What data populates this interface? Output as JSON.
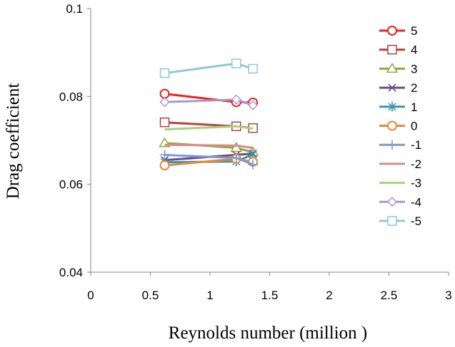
{
  "chart_data": {
    "type": "line",
    "title": "",
    "xlabel": "Reynolds number (million )",
    "ylabel": "Drag coefficient",
    "xlim": [
      0,
      3
    ],
    "ylim": [
      0.04,
      0.1
    ],
    "xticks": [
      "0",
      "0.5",
      "1",
      "1.5",
      "2",
      "2.5",
      "3"
    ],
    "yticks": [
      "0.04",
      "0.06",
      "0.08",
      "0.1"
    ],
    "grid": false,
    "legend_position": "right",
    "series": [
      {
        "name": "5",
        "color": "#e8231f",
        "marker": "circle",
        "x": [
          0.62,
          1.22,
          1.36
        ],
        "y": [
          0.0806,
          0.0787,
          0.0786
        ]
      },
      {
        "name": "4",
        "color": "#b5443c",
        "marker": "square",
        "x": [
          0.62,
          1.22,
          1.36
        ],
        "y": [
          0.0741,
          0.0732,
          0.0728
        ]
      },
      {
        "name": "3",
        "color": "#8faa3e",
        "marker": "triangle",
        "x": [
          0.62,
          1.22,
          1.36
        ],
        "y": [
          0.0694,
          0.0683,
          0.0673
        ]
      },
      {
        "name": "2",
        "color": "#6b4c8a",
        "marker": "x",
        "x": [
          0.62,
          1.22,
          1.36
        ],
        "y": [
          0.0655,
          0.0667,
          0.067
        ]
      },
      {
        "name": "1",
        "color": "#3d95a8",
        "marker": "star",
        "x": [
          0.62,
          1.22,
          1.36
        ],
        "y": [
          0.065,
          0.0652,
          0.0668
        ]
      },
      {
        "name": "0",
        "color": "#e88a33",
        "marker": "circle",
        "x": [
          0.62,
          1.22,
          1.36
        ],
        "y": [
          0.0643,
          0.0658,
          0.0651
        ]
      },
      {
        "name": "-1",
        "color": "#7a9bd6",
        "marker": "plus",
        "x": [
          0.62,
          1.22,
          1.36
        ],
        "y": [
          0.0667,
          0.066,
          0.0645
        ]
      },
      {
        "name": "-2",
        "color": "#d98a88",
        "marker": "none",
        "x": [
          0.62,
          1.22,
          1.36
        ],
        "y": [
          0.069,
          0.0688,
          0.0683
        ]
      },
      {
        "name": "-3",
        "color": "#a9cf86",
        "marker": "none",
        "x": [
          0.62,
          1.22,
          1.36
        ],
        "y": [
          0.0725,
          0.0732,
          0.0727
        ]
      },
      {
        "name": "-4",
        "color": "#a898c8",
        "marker": "diamond",
        "x": [
          0.62,
          1.22,
          1.36
        ],
        "y": [
          0.0787,
          0.0793,
          0.078
        ]
      },
      {
        "name": "-5",
        "color": "#8ec8d8",
        "marker": "square",
        "x": [
          0.62,
          1.22,
          1.36
        ],
        "y": [
          0.0853,
          0.0875,
          0.0863
        ]
      }
    ]
  }
}
